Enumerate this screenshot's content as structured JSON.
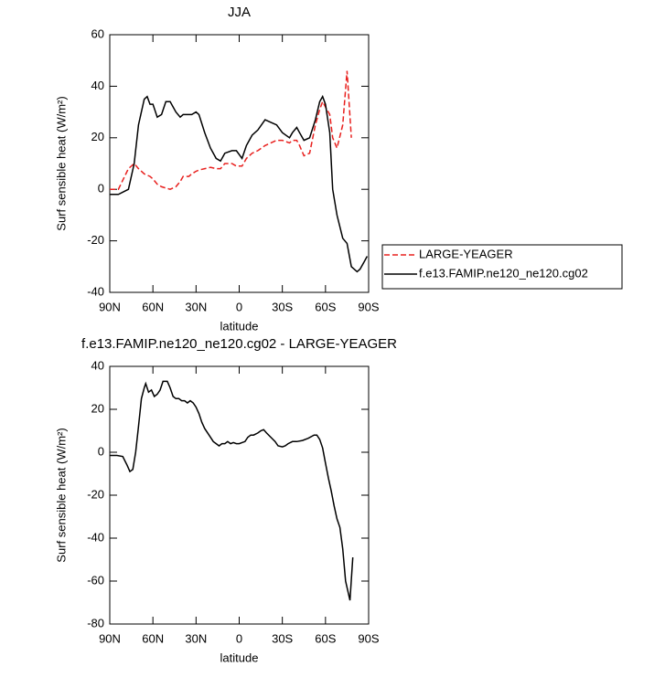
{
  "chart_data": [
    {
      "type": "line",
      "title": "JJA",
      "xlabel": "latitude",
      "ylabel": "Surf sensible heat (W/m²)",
      "x": [
        90,
        84,
        77,
        73,
        70,
        66,
        64,
        62,
        60,
        57,
        54,
        51,
        48,
        44,
        41,
        39,
        35,
        33,
        30,
        28,
        24,
        20,
        16,
        13,
        10,
        5,
        2,
        -2,
        -5,
        -9,
        -13,
        -18,
        -22,
        -26,
        -30,
        -35,
        -37,
        -40,
        -42,
        -45,
        -49,
        -53,
        -56,
        -58,
        -60,
        -63,
        -65,
        -68,
        -72,
        -75,
        -78,
        -82,
        -84,
        -87,
        -89
      ],
      "xlim": [
        90,
        -90
      ],
      "xticks": [
        {
          "value": 90,
          "label": "90N"
        },
        {
          "value": 60,
          "label": "60N"
        },
        {
          "value": 30,
          "label": "30N"
        },
        0,
        {
          "value": -30,
          "label": "30S"
        },
        {
          "value": -60,
          "label": "60S"
        },
        {
          "value": -90,
          "label": "90S"
        }
      ],
      "ylim": [
        -40,
        60
      ],
      "yticks": [
        -40,
        -20,
        0,
        20,
        40,
        60
      ],
      "legend": "outside-right",
      "series": [
        {
          "name": "LARGE-YEAGER",
          "color": "#e8201e",
          "style": "dashed",
          "values": [
            0,
            0,
            8,
            10,
            8,
            6,
            5.5,
            5,
            4,
            2,
            1,
            0.5,
            0,
            1,
            3,
            5,
            5,
            6,
            7,
            7.5,
            8,
            8.5,
            8,
            8,
            10,
            10,
            9,
            9,
            12,
            14,
            15,
            17,
            18,
            19,
            19,
            18,
            19,
            19,
            17,
            13,
            14,
            25,
            31,
            34,
            32,
            29,
            20,
            16,
            25,
            46,
            20,
            null,
            null,
            null,
            null
          ]
        },
        {
          "name": "f.e13.FAMIP.ne120_ne120.cg02",
          "color": "#000000",
          "style": "solid",
          "values": [
            -2,
            -2,
            0,
            10,
            25,
            35,
            36,
            33,
            33,
            28,
            29,
            34,
            34,
            30,
            28,
            29,
            29,
            29,
            30,
            29,
            22,
            16,
            12,
            11,
            14,
            15,
            15,
            12,
            17,
            21,
            23,
            27,
            26,
            25,
            22,
            20,
            22,
            24,
            22,
            19,
            20,
            27,
            34,
            36,
            33,
            22,
            0,
            -10,
            -19,
            -21,
            -30,
            -32,
            -31,
            -28,
            -26
          ]
        }
      ]
    },
    {
      "type": "line",
      "title": "f.e13.FAMIP.ne120_ne120.cg02 - LARGE-YEAGER",
      "xlabel": "latitude",
      "ylabel": "Surf sensible heat (W/m²)",
      "x": [
        90,
        85,
        81,
        78,
        76,
        74,
        72,
        70,
        68,
        66,
        65,
        63,
        61,
        59,
        57,
        55,
        53,
        50,
        48,
        46,
        44,
        42,
        40,
        38,
        36,
        34,
        32,
        30,
        28,
        26,
        24,
        20,
        18,
        16,
        14,
        12,
        10,
        8,
        6,
        4,
        2,
        0,
        -2,
        -4,
        -6,
        -8,
        -10,
        -13,
        -15,
        -17,
        -19,
        -22,
        -25,
        -27,
        -30,
        -32,
        -34,
        -37,
        -40,
        -44,
        -48,
        -52,
        -54,
        -56,
        -58,
        -60,
        -62,
        -64,
        -66,
        -68,
        -70,
        -72,
        -74,
        -77,
        -79
      ],
      "xlim": [
        90,
        -90
      ],
      "xticks": [
        {
          "value": 90,
          "label": "90N"
        },
        {
          "value": 60,
          "label": "60N"
        },
        {
          "value": 30,
          "label": "30N"
        },
        0,
        {
          "value": -30,
          "label": "30S"
        },
        {
          "value": -60,
          "label": "60S"
        },
        {
          "value": -90,
          "label": "90S"
        }
      ],
      "ylim": [
        -80,
        40
      ],
      "yticks": [
        -80,
        -60,
        -40,
        -20,
        0,
        20,
        40
      ],
      "series": [
        {
          "color": "#000000",
          "style": "solid",
          "values": [
            -1.5,
            -1.5,
            -2,
            -6,
            -9,
            -8,
            0,
            12,
            25,
            30,
            32,
            28,
            29,
            26,
            27,
            29,
            33,
            33,
            30,
            26,
            25,
            25,
            24,
            24,
            23,
            24,
            23,
            21,
            18,
            14,
            11,
            7,
            5,
            4,
            3,
            4,
            4,
            5,
            4,
            4.5,
            4,
            4,
            4.5,
            5,
            7,
            8,
            8,
            9,
            10,
            10.5,
            9,
            7,
            5,
            3,
            2.5,
            3,
            4,
            5,
            5,
            5.5,
            6.5,
            8,
            8,
            6,
            2,
            -5,
            -12,
            -18,
            -25,
            -31,
            -35,
            -45,
            -60,
            -69,
            -49
          ]
        }
      ]
    }
  ]
}
